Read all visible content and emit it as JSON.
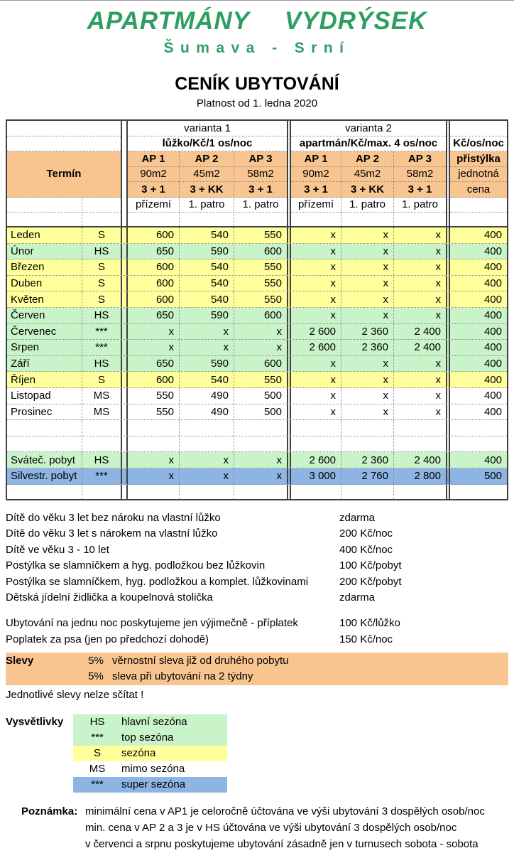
{
  "page": {
    "title": "APARTMÁNY  VYDRÝSEK",
    "subtitle": "Šumava - Srní",
    "heading": "CENÍK UBYTOVÁNÍ",
    "validity": "Platnost od 1. ledna 2020"
  },
  "colors": {
    "title_green": "#2f9e63",
    "header_orange": "#f8c591",
    "season_yellow": "#ffff9c",
    "season_green": "#c9f3c9",
    "season_blue": "#8db4e2",
    "season_white": "#ffffff"
  },
  "table": {
    "header": {
      "termin": "Termín",
      "variant1": "varianta 1",
      "variant1_sub": "lůžko/Kč/1 os/noc",
      "variant2": "varianta 2",
      "variant2_sub": "apartmán/Kč/max. 4 os/noc",
      "extra_unit": "Kč/os/noc",
      "ap": [
        "AP 1",
        "AP 2",
        "AP 3"
      ],
      "sizes": [
        "90m2",
        "45m2",
        "58m2"
      ],
      "layouts": [
        "3 + 1",
        "3 + KK",
        "3 + 1"
      ],
      "floors": [
        "přízemí",
        "1. patro",
        "1. patro"
      ],
      "extra": [
        "přistýlka",
        "jednotná",
        "cena"
      ]
    },
    "rows": [
      {
        "name": "Leden",
        "season": "S",
        "color": "yellow",
        "v1": [
          "600",
          "540",
          "550"
        ],
        "v2": [
          "x",
          "x",
          "x"
        ],
        "extra": "400"
      },
      {
        "name": "Únor",
        "season": "HS",
        "color": "green",
        "v1": [
          "650",
          "590",
          "600"
        ],
        "v2": [
          "x",
          "x",
          "x"
        ],
        "extra": "400"
      },
      {
        "name": "Březen",
        "season": "S",
        "color": "yellow",
        "v1": [
          "600",
          "540",
          "550"
        ],
        "v2": [
          "x",
          "x",
          "x"
        ],
        "extra": "400"
      },
      {
        "name": "Duben",
        "season": "S",
        "color": "yellow",
        "v1": [
          "600",
          "540",
          "550"
        ],
        "v2": [
          "x",
          "x",
          "x"
        ],
        "extra": "400"
      },
      {
        "name": "Květen",
        "season": "S",
        "color": "yellow",
        "v1": [
          "600",
          "540",
          "550"
        ],
        "v2": [
          "x",
          "x",
          "x"
        ],
        "extra": "400"
      },
      {
        "name": "Červen",
        "season": "HS",
        "color": "green",
        "v1": [
          "650",
          "590",
          "600"
        ],
        "v2": [
          "x",
          "x",
          "x"
        ],
        "extra": "400"
      },
      {
        "name": "Červenec",
        "season": "***",
        "color": "green",
        "v1": [
          "x",
          "x",
          "x"
        ],
        "v2": [
          "2 600",
          "2 360",
          "2 400"
        ],
        "extra": "400"
      },
      {
        "name": "Srpen",
        "season": "***",
        "color": "green",
        "v1": [
          "x",
          "x",
          "x"
        ],
        "v2": [
          "2 600",
          "2 360",
          "2 400"
        ],
        "extra": "400"
      },
      {
        "name": "Září",
        "season": "HS",
        "color": "green",
        "v1": [
          "650",
          "590",
          "600"
        ],
        "v2": [
          "x",
          "x",
          "x"
        ],
        "extra": "400"
      },
      {
        "name": "Říjen",
        "season": "S",
        "color": "yellow",
        "v1": [
          "600",
          "540",
          "550"
        ],
        "v2": [
          "x",
          "x",
          "x"
        ],
        "extra": "400"
      },
      {
        "name": "Listopad",
        "season": "MS",
        "color": "white",
        "v1": [
          "550",
          "490",
          "500"
        ],
        "v2": [
          "x",
          "x",
          "x"
        ],
        "extra": "400"
      },
      {
        "name": "Prosinec",
        "season": "MS",
        "color": "white",
        "v1": [
          "550",
          "490",
          "500"
        ],
        "v2": [
          "x",
          "x",
          "x"
        ],
        "extra": "400"
      },
      {
        "empty": true,
        "color": "white"
      },
      {
        "empty": true,
        "color": "white"
      },
      {
        "name": "Sváteč. pobyt",
        "season": "HS",
        "color": "green",
        "v1": [
          "x",
          "x",
          "x"
        ],
        "v2": [
          "2 600",
          "2 360",
          "2 400"
        ],
        "extra": "400"
      },
      {
        "name": "Silvestr. pobyt",
        "season": "***",
        "color": "blue",
        "v1": [
          "x",
          "x",
          "x"
        ],
        "v2": [
          "3 000",
          "2 760",
          "2 800"
        ],
        "extra": "500"
      },
      {
        "empty": true,
        "color": "white",
        "short": true
      }
    ]
  },
  "fees_children": [
    {
      "label": "Dítě do věku 3 let bez nároku na vlastní lůžko",
      "value": "zdarma"
    },
    {
      "label": "Dítě do věku 3 let s nárokem na vlastní lůžko",
      "value": "200 Kč/noc"
    },
    {
      "label": "Dítě ve věku 3 - 10 let",
      "value": "400 Kč/noc"
    },
    {
      "label": "Postýlka se slamníčkem a hyg. podložkou bez lůžkovin",
      "value": "100 Kč/pobyt"
    },
    {
      "label": "Postýlka se slamníčkem,  hyg. podložkou a komplet. lůžkovinami",
      "value": "200 Kč/pobyt"
    },
    {
      "label": "Dětská jídelní židlička a koupelnová stolička",
      "value": "zdarma"
    }
  ],
  "fees_other": [
    {
      "label": "Ubytování na jednu noc poskytujeme jen výjimečně - příplatek",
      "value": "100 Kč/lůžko"
    },
    {
      "label": "Poplatek za psa (jen po předchozí dohodě)",
      "value": "150 Kč/noc"
    }
  ],
  "discounts": {
    "label": "Slevy",
    "items": [
      {
        "pct": "5%",
        "text": "věrnostní sleva již od druhého pobytu"
      },
      {
        "pct": "5%",
        "text": "sleva při ubytování na 2 týdny"
      }
    ],
    "note": "Jednotlivé slevy nelze sčítat !"
  },
  "legend": {
    "label": "Vysvětlivky",
    "items": [
      {
        "code": "HS",
        "text": "hlavní sezóna",
        "color": "green"
      },
      {
        "code": "***",
        "text": "top sezóna",
        "color": "green"
      },
      {
        "code": "S",
        "text": "sezóna",
        "color": "yellow"
      },
      {
        "code": "MS",
        "text": "mimo sezóna",
        "color": "white"
      },
      {
        "code": "***",
        "text": "super sezóna",
        "color": "blue"
      }
    ]
  },
  "note": {
    "label": "Poznámka:",
    "lines": [
      "minimální cena v AP1 je celoročně účtována ve výši ubytování 3 dospělých osob/noc",
      "min. cena v AP 2 a 3 je v HS účtována ve výši ubytování 3 dospělých osob/noc",
      "v červenci a srpnu poskytujeme ubytování zásadně jen v turnusech sobota - sobota"
    ]
  }
}
